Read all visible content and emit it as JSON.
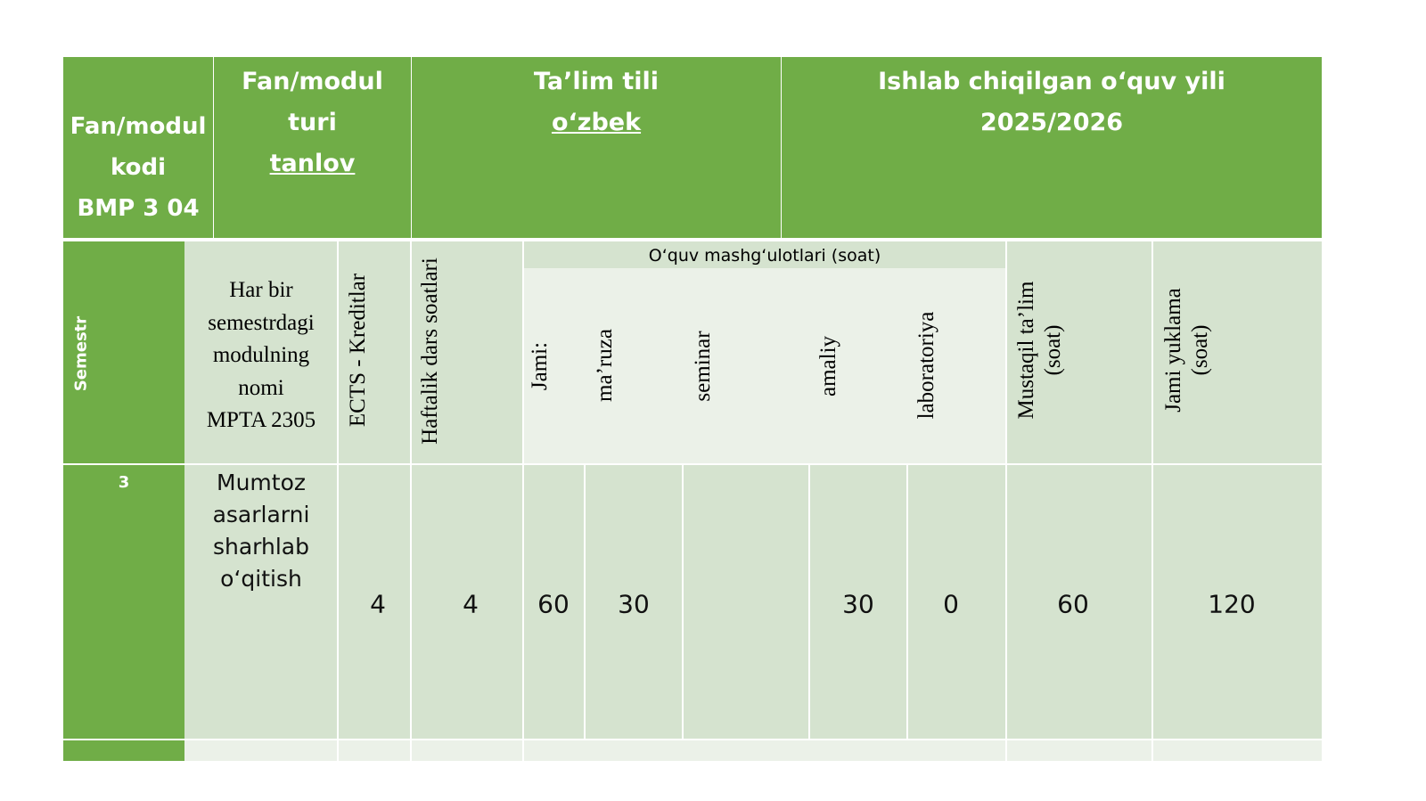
{
  "header": {
    "code_label": "Fan/modul kodi",
    "code_value": "BMP 3 04",
    "type_label": "Fan/modul turi",
    "type_value": "tanlov",
    "language_label": "Ta’lim tili",
    "language_value": "o‘zbek",
    "year_label": "Ishlab chiqilgan o‘quv yili",
    "year_value": "2025/2026"
  },
  "columns": {
    "semestr": "Semestr",
    "module_name_lines": [
      "Har bir",
      "semestrdagi",
      "modulning",
      "nomi",
      "MPTA 2305"
    ],
    "ects": "ECTS - Kreditlar",
    "weekly": "Haftalik dars soatlari",
    "group": "O‘quv mashg‘ulotlari (soat)",
    "total": "Jami:",
    "lecture": "ma’ruza",
    "seminar": "seminar",
    "practical": "amaliy",
    "lab": "laboratoriya",
    "independent": "Mustaqil ta’lim (soat)",
    "total_load": "Jami yuklama (soat)"
  },
  "row": {
    "semestr": "3",
    "module_name_lines": [
      "Mumtoz",
      "asarlarni",
      "sharhlab",
      "o‘qitish"
    ],
    "ects": "4",
    "weekly": "4",
    "total": "60",
    "lecture": "30",
    "seminar": "",
    "practical": "30",
    "lab": "0",
    "independent": "60",
    "total_load": "120"
  },
  "colors": {
    "header_green": "#70ad47",
    "cell_light": "#d5e3cf",
    "cell_lighter": "#ebf1e8"
  }
}
